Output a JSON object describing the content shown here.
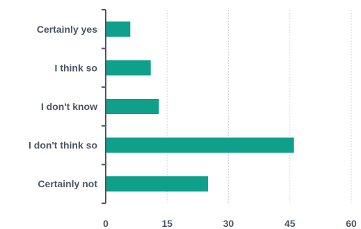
{
  "chart_data": {
    "type": "bar",
    "orientation": "horizontal",
    "categories": [
      "Certainly yes",
      "I think so",
      "I don't know",
      "I don't think so",
      "Certainly not"
    ],
    "values": [
      6,
      11,
      13,
      46,
      25
    ],
    "xlim": [
      0,
      60
    ],
    "xticks": [
      0,
      15,
      30,
      45,
      60
    ],
    "tick_labels": [
      "0",
      "15",
      "30",
      "45",
      "60"
    ],
    "grid": "vertical dashed",
    "title": "",
    "xlabel": "",
    "ylabel": ""
  },
  "colors": {
    "bar": "#0fa08c",
    "grid": "#d1d5db",
    "axis": "#4b5563",
    "text": "#4b5563"
  }
}
